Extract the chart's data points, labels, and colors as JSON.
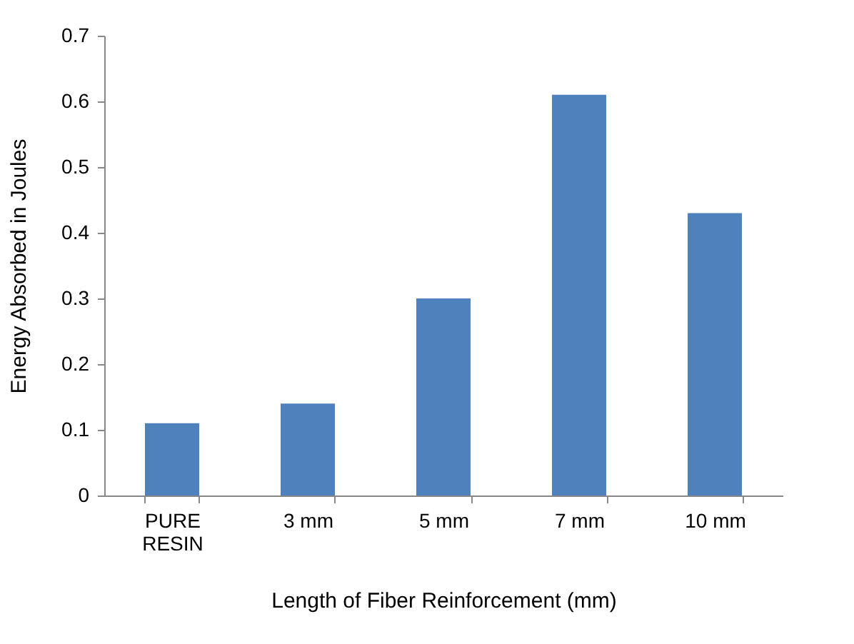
{
  "chart_data": {
    "type": "bar",
    "xlabel": "Length of Fiber Reinforcement (mm)",
    "ylabel": "Energy Absorbed in Joules",
    "categories": [
      "PURE RESIN",
      "3 mm",
      "5 mm",
      "7 mm",
      "10 mm"
    ],
    "series": [
      {
        "color": "#4f81bd",
        "values": [
          0.11,
          0.14,
          0.3,
          0.61,
          0.43
        ]
      }
    ],
    "ylim": [
      0,
      0.7
    ],
    "yticks": [
      0,
      0.1,
      0.2,
      0.3,
      0.4,
      0.5,
      0.6,
      0.7
    ],
    "grid": false,
    "legend": false
  }
}
